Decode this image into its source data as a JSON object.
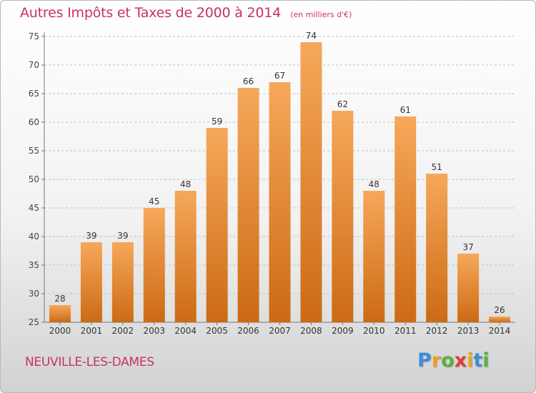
{
  "header": {
    "title": "Autres Impôts et Taxes de 2000 à 2014",
    "unit": "(en milliers d'€)"
  },
  "footer": {
    "commune": "NEUVILLE-LES-DAMES",
    "logo": "Proxiti"
  },
  "colors": {
    "bar_top": "#f6a85a",
    "bar_bottom": "#cc6a14",
    "text_accent": "#c8306a",
    "grid": "#bfbfbf"
  },
  "chart_data": {
    "type": "bar",
    "title": "Autres Impôts et Taxes de 2000 à 2014",
    "categories": [
      "2000",
      "2001",
      "2002",
      "2003",
      "2004",
      "2005",
      "2006",
      "2007",
      "2008",
      "2009",
      "2010",
      "2011",
      "2012",
      "2013",
      "2014"
    ],
    "values": [
      28,
      39,
      39,
      45,
      48,
      59,
      66,
      67,
      74,
      62,
      48,
      61,
      51,
      37,
      26
    ],
    "ylim": [
      25,
      75
    ],
    "yticks": [
      25,
      30,
      35,
      40,
      45,
      50,
      55,
      60,
      65,
      70,
      75
    ],
    "grid": true,
    "data_labels": true
  }
}
